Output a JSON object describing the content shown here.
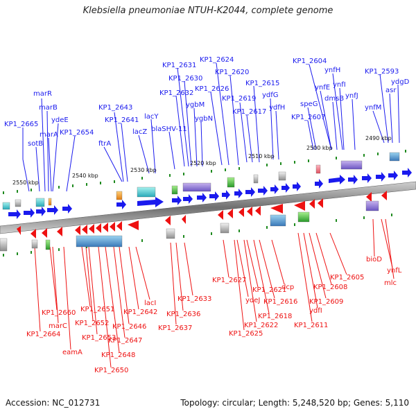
{
  "title": "Klebsiella pneumoniae NTUH-K2044, complete genome",
  "footer": {
    "accession": "Accession: NC_012731",
    "summary": "Topology: circular; Length: 5,248,520 bp; Genes: 5,110"
  },
  "colors": {
    "forward": "#1a1aee",
    "reverse": "#ee1111",
    "axis": "#888888",
    "tick": "#1f8a1f",
    "label_text": "#111111"
  },
  "scale_labels": [
    "2550 kbp",
    "2540 kbp",
    "2530 kbp",
    "2520 kbp",
    "2510 kbp",
    "2500 kbp",
    "2490 kbp"
  ],
  "top_labels": [
    "KP1_2665",
    "sotB",
    "marR",
    "marB",
    "marA",
    "ydeE",
    "KP1_2654",
    "ftrA",
    "KP1_2643",
    "KP1_2641",
    "lacY",
    "lacZ",
    "blaSHV-11",
    "KP1_2631",
    "KP1_2630",
    "KP1_2632",
    "ygbM",
    "ygbN",
    "KP1_2624",
    "KP1_2620",
    "KP1_2626",
    "KP1_2615",
    "KP1_2619",
    "KP1_2617",
    "ydfG",
    "ydfH",
    "KP1_2604",
    "speG",
    "KP1_2607",
    "ynfE",
    "ynfH",
    "ynfI",
    "dmsB",
    "ynfJ",
    "KP1_2593",
    "ynfM",
    "asr",
    "ydgD"
  ],
  "bottom_labels": [
    "KP1_2664",
    "KP1_2660",
    "marC",
    "eamA",
    "KP1_2651",
    "KP1_2652",
    "KP1_2653",
    "KP1_2650",
    "KP1_2648",
    "KP1_2647",
    "KP1_2646",
    "KP1_2642",
    "lacI",
    "KP1_2637",
    "KP1_2636",
    "KP1_2633",
    "KP1_2627",
    "KP1_2625",
    "ydeJ",
    "KP1_2622",
    "KP1_2621",
    "KP1_2618",
    "KP1_2616",
    "dcp",
    "KP1_2611",
    "ydfI",
    "KP1_2609",
    "KP1_2608",
    "KP1_2605",
    "bioD",
    "ynfL",
    "mlc"
  ]
}
